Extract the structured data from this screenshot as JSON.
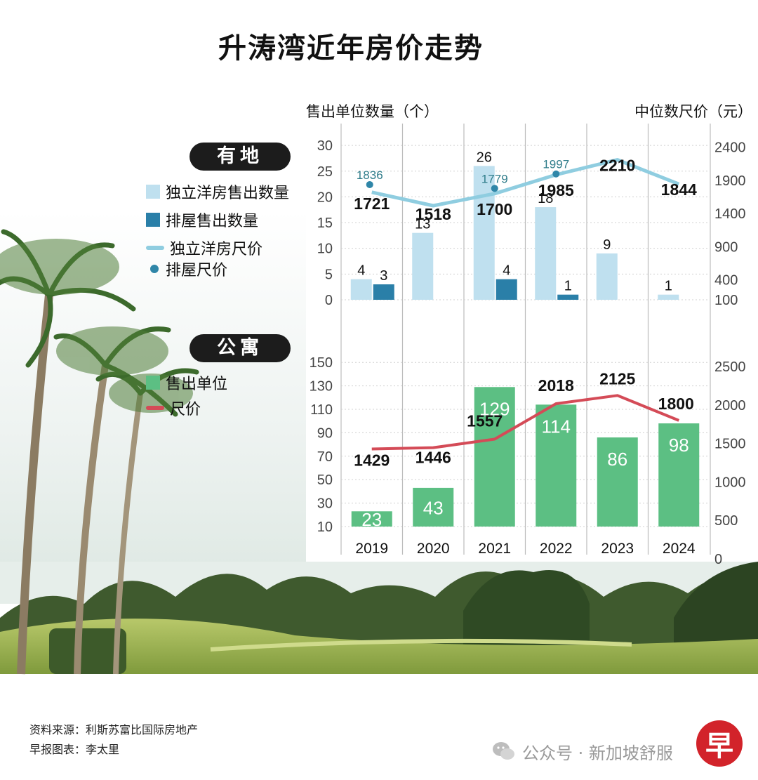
{
  "title": "升涛湾近年房价走势",
  "axis_labels": {
    "left": "售出单位数量（个）",
    "right": "中位数尺价（元）"
  },
  "sections": {
    "landed": {
      "label": "有地",
      "legend": [
        {
          "label": "独立洋房售出数量",
          "swatch": "square",
          "color": "#bfe0ef"
        },
        {
          "label": "排屋售出数量",
          "swatch": "square",
          "color": "#2a7fa8"
        },
        {
          "label": "独立洋房尺价",
          "swatch": "line",
          "color": "#8fcde0"
        },
        {
          "label": "排屋尺价",
          "swatch": "dot",
          "color": "#2f86a8"
        }
      ]
    },
    "condo": {
      "label": "公寓",
      "legend": [
        {
          "label": "售出单位",
          "swatch": "square",
          "color": "#5cbf83"
        },
        {
          "label": "尺价",
          "swatch": "line",
          "color": "#d44b57"
        }
      ]
    }
  },
  "chart_data": [
    {
      "type": "bar",
      "categories": [
        "2019",
        "2020",
        "2021",
        "2022",
        "2023",
        "2024"
      ],
      "y_left": {
        "ticks": [
          "0",
          "5",
          "10",
          "15",
          "20",
          "25",
          "30"
        ],
        "range": [
          0,
          30
        ]
      },
      "y_right": {
        "ticks": [
          "100",
          "400",
          "900",
          "1400",
          "1900",
          "2400"
        ]
      },
      "series": [
        {
          "name": "独立洋房售出数量",
          "values": [
            4,
            13,
            26,
            18,
            9,
            1
          ],
          "labels": [
            "4",
            "13",
            "26",
            "18",
            "9",
            "1"
          ],
          "color": "#bfe0ef",
          "axis": "left"
        },
        {
          "name": "排屋售出数量",
          "values": [
            3,
            null,
            4,
            1,
            null,
            null
          ],
          "labels": [
            "3",
            "",
            "4",
            "1",
            "",
            ""
          ],
          "color": "#2a7fa8",
          "axis": "left"
        },
        {
          "name": "独立洋房尺价",
          "type": "line",
          "values": [
            1721,
            1518,
            1700,
            1985,
            2210,
            1844
          ],
          "labels": [
            "1721",
            "1518",
            "1700",
            "1985",
            "2210",
            "1844"
          ],
          "color": "#8fcde0",
          "axis": "right"
        },
        {
          "name": "排屋尺价",
          "type": "scatter",
          "values": [
            1836,
            null,
            1779,
            1997,
            null,
            null
          ],
          "labels": [
            "1836",
            "",
            "1779",
            "1997",
            "",
            ""
          ],
          "color": "#2f86a8",
          "axis": "right"
        }
      ]
    },
    {
      "type": "bar",
      "categories": [
        "2019",
        "2020",
        "2021",
        "2022",
        "2023",
        "2024"
      ],
      "y_left": {
        "ticks": [
          "10",
          "30",
          "50",
          "70",
          "90",
          "110",
          "130",
          "150"
        ],
        "range": [
          0,
          160
        ]
      },
      "y_right": {
        "ticks": [
          "0",
          "500",
          "1000",
          "1500",
          "2000",
          "2500"
        ],
        "range": [
          0,
          2750
        ]
      },
      "series": [
        {
          "name": "售出单位",
          "values": [
            23,
            43,
            129,
            114,
            86,
            98
          ],
          "labels": [
            "23",
            "43",
            "129",
            "114",
            "86",
            "98"
          ],
          "color": "#5cbf83",
          "axis": "left"
        },
        {
          "name": "尺价",
          "type": "line",
          "values": [
            1429,
            1446,
            1557,
            2018,
            2125,
            1800
          ],
          "labels": [
            "1429",
            "1446",
            "1557",
            "2018",
            "2125",
            "1800"
          ],
          "color": "#d44b57",
          "axis": "right"
        }
      ]
    }
  ],
  "footer": {
    "source": "资料来源：利斯苏富比国际房地产",
    "credit": "早报图表：李太里"
  },
  "watermark": {
    "text": "公众号 · 新加坡舒服"
  },
  "logo": {
    "text": "早"
  }
}
